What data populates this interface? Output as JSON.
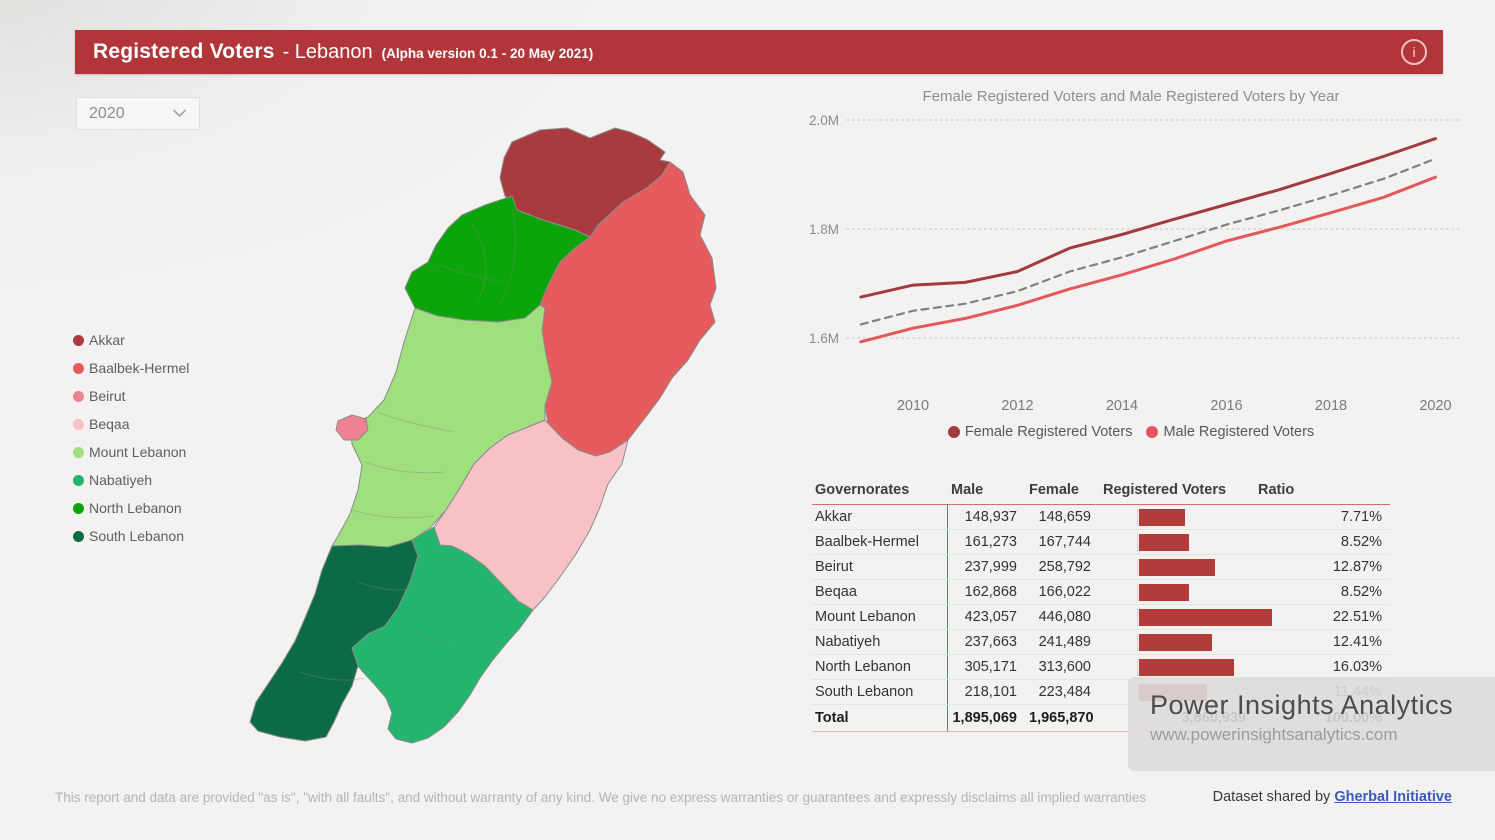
{
  "header": {
    "title": "Registered Voters",
    "region": "- Lebanon",
    "version_note": "(Alpha version 0.1 - 20 May 2021)",
    "accent_color": "#b23639"
  },
  "filters": {
    "year": "2020"
  },
  "map_legend": {
    "items": [
      {
        "key": "akkar",
        "label": "Akkar",
        "color": "#a93b40"
      },
      {
        "key": "baalbek-hermel",
        "label": "Baalbek-Hermel",
        "color": "#e65b5e"
      },
      {
        "key": "beirut",
        "label": "Beirut",
        "color": "#ee8292"
      },
      {
        "key": "beqaa",
        "label": "Beqaa",
        "color": "#f7c2c5"
      },
      {
        "key": "mount-lebanon",
        "label": "Mount Lebanon",
        "color": "#9fdf7d"
      },
      {
        "key": "nabatiyeh",
        "label": "Nabatiyeh",
        "color": "#23b46e"
      },
      {
        "key": "north-lebanon",
        "label": "North Lebanon",
        "color": "#0ba50b"
      },
      {
        "key": "south-lebanon",
        "label": "South Lebanon",
        "color": "#0c6a45"
      }
    ]
  },
  "chart_data": {
    "type": "line",
    "title": "Female Registered Voters and Male Registered Voters by Year",
    "x": [
      2009,
      2010,
      2011,
      2012,
      2013,
      2014,
      2015,
      2016,
      2017,
      2018,
      2019,
      2020
    ],
    "xticks": [
      2010,
      2012,
      2014,
      2016,
      2018,
      2020
    ],
    "yticks": [
      {
        "value": 1600000,
        "label": "1.6M"
      },
      {
        "value": 1800000,
        "label": "1.8M"
      },
      {
        "value": 2000000,
        "label": "2.0M"
      }
    ],
    "ylim": [
      1550000,
      2020000
    ],
    "grid": "dotted-horizontal",
    "legend_position": "bottom",
    "series": [
      {
        "name": "Female Registered Voters",
        "color": "#a23b40",
        "style": "solid",
        "values": [
          1675000,
          1697000,
          1702000,
          1722000,
          1765000,
          1790000,
          1818000,
          1845000,
          1872000,
          1902000,
          1933000,
          1965870
        ]
      },
      {
        "name": "Male Registered Voters",
        "color": "#e4575c",
        "style": "solid",
        "values": [
          1593000,
          1618000,
          1636000,
          1660000,
          1690000,
          1716000,
          1745000,
          1778000,
          1803000,
          1830000,
          1858000,
          1895069
        ]
      },
      {
        "name": "average-trend (dashed, unlabeled)",
        "color": "#818181",
        "style": "dashed",
        "values": [
          1625000,
          1650000,
          1663000,
          1686000,
          1722000,
          1748000,
          1778000,
          1808000,
          1834000,
          1862000,
          1892000,
          1929000
        ]
      }
    ],
    "legend": [
      {
        "label": "Female Registered Voters",
        "color": "#a23b40"
      },
      {
        "label": "Male Registered Voters",
        "color": "#e4575c"
      }
    ]
  },
  "table": {
    "columns": [
      "Governorates",
      "Male",
      "Female",
      "Registered Voters",
      "Ratio"
    ],
    "bar_color": "#b23b3b",
    "rows": [
      {
        "governorate": "Akkar",
        "male": "148,937",
        "female": "148,659",
        "registered": 297596,
        "ratio": "7.71%"
      },
      {
        "governorate": "Baalbek-Hermel",
        "male": "161,273",
        "female": "167,744",
        "registered": 329017,
        "ratio": "8.52%"
      },
      {
        "governorate": "Beirut",
        "male": "237,999",
        "female": "258,792",
        "registered": 496791,
        "ratio": "12.87%"
      },
      {
        "governorate": "Beqaa",
        "male": "162,868",
        "female": "166,022",
        "registered": 328890,
        "ratio": "8.52%"
      },
      {
        "governorate": "Mount Lebanon",
        "male": "423,057",
        "female": "446,080",
        "registered": 869137,
        "ratio": "22.51%"
      },
      {
        "governorate": "Nabatiyeh",
        "male": "237,663",
        "female": "241,489",
        "registered": 479152,
        "ratio": "12.41%"
      },
      {
        "governorate": "North Lebanon",
        "male": "305,171",
        "female": "313,600",
        "registered": 618771,
        "ratio": "16.03%"
      },
      {
        "governorate": "South Lebanon",
        "male": "218,101",
        "female": "223,484",
        "registered": 441585,
        "ratio": "11.44%"
      }
    ],
    "total": {
      "label": "Total",
      "male": "1,895,069",
      "female": "1,965,870",
      "registered": "3,860,939",
      "ratio": "100.00%"
    }
  },
  "watermark": {
    "title": "Power Insights Analytics",
    "url": "www.powerinsightsanalytics.com"
  },
  "footer": {
    "disclaimer": "This report and data are provided \"as is\", \"with all faults\", and without warranty of any kind. We give no express warranties or guarantees and expressly disclaims all implied warranties",
    "credit_prefix": "Dataset shared by ",
    "credit_link": "Gherbal Initiative"
  }
}
